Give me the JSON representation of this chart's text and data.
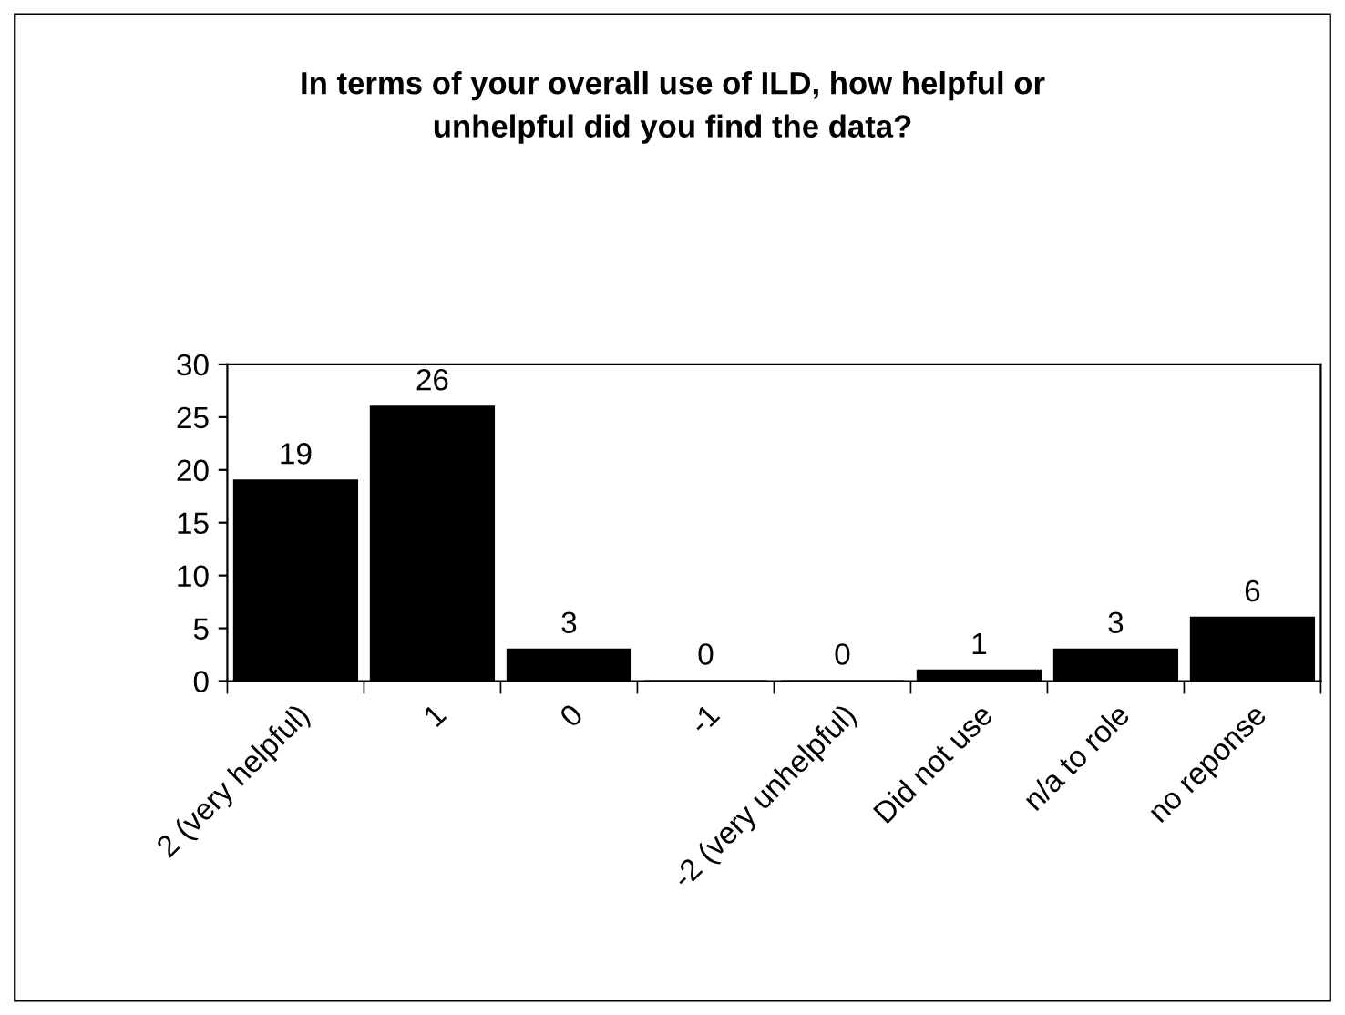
{
  "chart_data": {
    "type": "bar",
    "title": "In terms of your overall use of ILD, how helpful or\nunhelpful did you find the data?",
    "categories": [
      "2 (very helpful)",
      "1",
      "0",
      "-1",
      "-2 (very unhelpful)",
      "Did not use",
      "n/a to role",
      "no reponse"
    ],
    "values": [
      19,
      26,
      3,
      0,
      0,
      1,
      3,
      6
    ],
    "color": "#000000",
    "ylim": [
      0,
      30
    ],
    "yticks": [
      0,
      5,
      10,
      15,
      20,
      25,
      30
    ],
    "grid": false,
    "data_labels": true
  }
}
